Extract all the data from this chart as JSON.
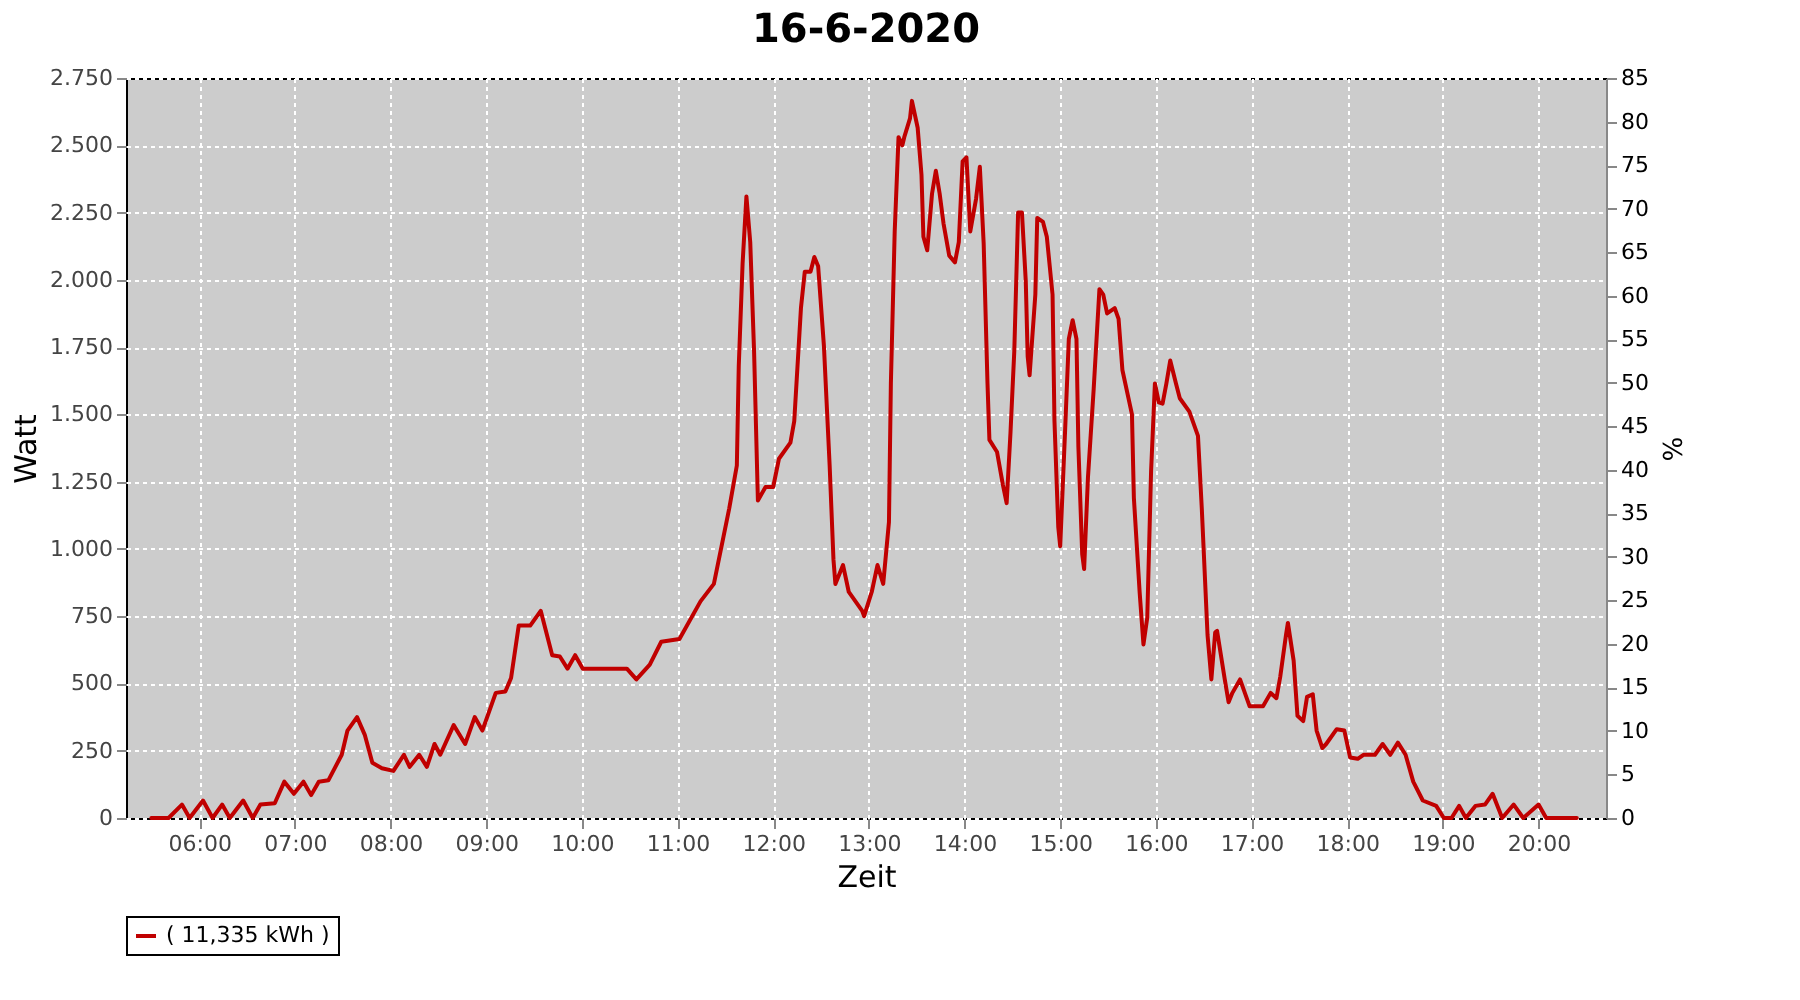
{
  "chart_data": {
    "type": "line",
    "title": "16-6-2020",
    "xlabel": "Zeit",
    "ylabel": "Watt",
    "y2label": "%",
    "xlim": [
      5.235,
      20.705
    ],
    "xticks": [
      {
        "value": 6,
        "label": "06:00"
      },
      {
        "value": 7,
        "label": "07:00"
      },
      {
        "value": 8,
        "label": "08:00"
      },
      {
        "value": 9,
        "label": "09:00"
      },
      {
        "value": 10,
        "label": "10:00"
      },
      {
        "value": 11,
        "label": "11:00"
      },
      {
        "value": 12,
        "label": "12:00"
      },
      {
        "value": 13,
        "label": "13:00"
      },
      {
        "value": 14,
        "label": "14:00"
      },
      {
        "value": 15,
        "label": "15:00"
      },
      {
        "value": 16,
        "label": "16:00"
      },
      {
        "value": 17,
        "label": "17:00"
      },
      {
        "value": 18,
        "label": "18:00"
      },
      {
        "value": 19,
        "label": "19:00"
      },
      {
        "value": 20,
        "label": "20:00"
      }
    ],
    "ylim": [
      0,
      2750
    ],
    "yticks": [
      0,
      250,
      500,
      750,
      {
        "value": 1000,
        "label": "1.000"
      },
      {
        "value": 1250,
        "label": "1.250"
      },
      {
        "value": 1500,
        "label": "1.500"
      },
      {
        "value": 1750,
        "label": "1.750"
      },
      {
        "value": 2000,
        "label": "2.000"
      },
      {
        "value": 2250,
        "label": "2.250"
      },
      {
        "value": 2500,
        "label": "2.500"
      },
      {
        "value": 2750,
        "label": "2.750"
      }
    ],
    "y2lim": [
      0,
      85
    ],
    "y2ticks": [
      0,
      5,
      10,
      15,
      20,
      25,
      30,
      35,
      40,
      45,
      50,
      55,
      60,
      65,
      70,
      75,
      80,
      85
    ],
    "grid": true,
    "legend": "bottom",
    "series": [
      {
        "name": "( 11,335 kWh )",
        "color": "#c00000",
        "x": [
          5.5,
          5.68,
          5.82,
          5.9,
          6.04,
          6.14,
          6.24,
          6.32,
          6.46,
          6.56,
          6.64,
          6.79,
          6.89,
          6.99,
          7.09,
          7.17,
          7.25,
          7.35,
          7.49,
          7.55,
          7.65,
          7.73,
          7.81,
          7.91,
          8.03,
          8.14,
          8.2,
          8.3,
          8.38,
          8.46,
          8.52,
          8.66,
          8.78,
          8.88,
          8.96,
          9.1,
          9.2,
          9.26,
          9.34,
          9.46,
          9.57,
          9.69,
          9.77,
          9.85,
          9.93,
          10.01,
          10.21,
          10.47,
          10.57,
          10.71,
          10.83,
          11.02,
          11.24,
          11.38,
          11.48,
          11.54,
          11.62,
          11.64,
          11.68,
          11.72,
          11.76,
          11.8,
          11.84,
          11.92,
          12.0,
          12.06,
          12.18,
          12.22,
          12.29,
          12.33,
          12.39,
          12.43,
          12.47,
          12.53,
          12.59,
          12.63,
          12.65,
          12.73,
          12.79,
          12.93,
          12.95,
          13.03,
          13.09,
          13.15,
          13.21,
          13.23,
          13.27,
          13.31,
          13.35,
          13.37,
          13.43,
          13.45,
          13.51,
          13.55,
          13.57,
          13.61,
          13.66,
          13.7,
          13.74,
          13.78,
          13.84,
          13.9,
          13.94,
          13.98,
          14.02,
          14.06,
          14.12,
          14.16,
          14.2,
          14.24,
          14.26,
          14.34,
          14.4,
          14.44,
          14.48,
          14.52,
          14.56,
          14.6,
          14.64,
          14.66,
          14.68,
          14.74,
          14.76,
          14.82,
          14.86,
          14.92,
          14.94,
          14.98,
          15.0,
          15.05,
          15.09,
          15.13,
          15.17,
          15.19,
          15.23,
          15.25,
          15.29,
          15.35,
          15.41,
          15.45,
          15.49,
          15.57,
          15.61,
          15.65,
          15.75,
          15.77,
          15.83,
          15.87,
          15.91,
          15.95,
          15.99,
          16.03,
          16.07,
          16.11,
          16.15,
          16.21,
          16.25,
          16.35,
          16.44,
          16.48,
          16.54,
          16.58,
          16.62,
          16.64,
          16.68,
          16.72,
          16.76,
          16.8,
          16.88,
          16.98,
          17.12,
          17.2,
          17.26,
          17.3,
          17.36,
          17.38,
          17.44,
          17.48,
          17.54,
          17.58,
          17.64,
          17.68,
          17.74,
          17.78,
          17.89,
          17.97,
          18.03,
          18.11,
          18.17,
          18.29,
          18.37,
          18.45,
          18.53,
          18.61,
          18.69,
          18.79,
          18.93,
          19.01,
          19.09,
          19.17,
          19.24,
          19.34,
          19.44,
          19.52,
          19.62,
          19.74,
          19.84,
          20.0,
          20.08,
          20.4
        ],
        "values": [
          0,
          0,
          50,
          0,
          65,
          0,
          50,
          0,
          65,
          0,
          50,
          55,
          135,
          90,
          135,
          85,
          135,
          140,
          235,
          325,
          375,
          310,
          205,
          185,
          175,
          235,
          190,
          235,
          190,
          275,
          235,
          345,
          275,
          375,
          325,
          465,
          470,
          520,
          715,
          715,
          770,
          605,
          600,
          555,
          605,
          555,
          555,
          555,
          515,
          570,
          655,
          665,
          805,
          870,
          1045,
          1150,
          1310,
          1680,
          2060,
          2310,
          2140,
          1735,
          1180,
          1230,
          1230,
          1335,
          1395,
          1475,
          1895,
          2030,
          2030,
          2085,
          2050,
          1755,
          1310,
          960,
          870,
          940,
          840,
          770,
          750,
          840,
          940,
          870,
          1100,
          1615,
          2180,
          2530,
          2500,
          2530,
          2600,
          2665,
          2565,
          2390,
          2160,
          2110,
          2320,
          2405,
          2320,
          2210,
          2090,
          2065,
          2140,
          2440,
          2455,
          2180,
          2300,
          2420,
          2135,
          1615,
          1405,
          1360,
          1240,
          1170,
          1430,
          1735,
          2250,
          2250,
          1995,
          1715,
          1645,
          1945,
          2230,
          2215,
          2160,
          1945,
          1475,
          1080,
          1010,
          1430,
          1780,
          1850,
          1780,
          1380,
          980,
          925,
          1265,
          1595,
          1965,
          1945,
          1875,
          1895,
          1855,
          1665,
          1500,
          1190,
          840,
          645,
          745,
          1290,
          1615,
          1545,
          1540,
          1615,
          1700,
          1615,
          1560,
          1510,
          1420,
          1150,
          680,
          515,
          690,
          695,
          605,
          515,
          430,
          465,
          515,
          415,
          415,
          465,
          445,
          525,
          680,
          725,
          585,
          380,
          360,
          450,
          460,
          325,
          260,
          275,
          330,
          325,
          225,
          220,
          235,
          235,
          275,
          235,
          280,
          235,
          135,
          65,
          45,
          0,
          0,
          45,
          0,
          45,
          50,
          90,
          0,
          50,
          0,
          50,
          0,
          0
        ]
      }
    ]
  }
}
